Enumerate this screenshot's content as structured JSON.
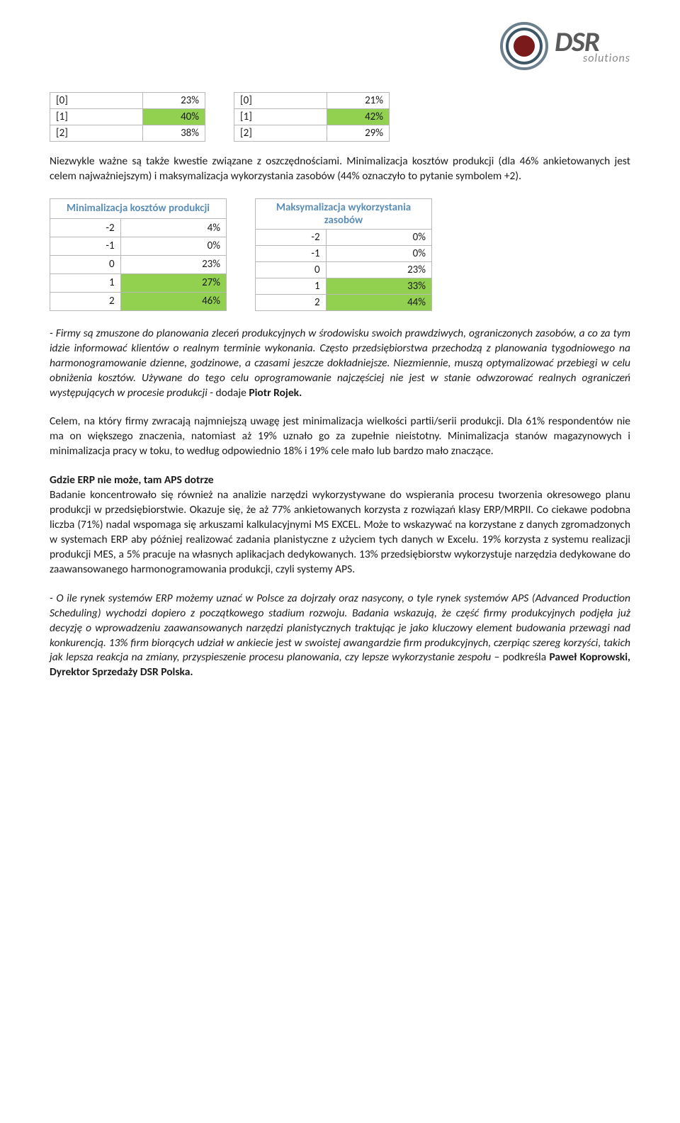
{
  "logo": {
    "brand": "DSR",
    "sub": "solutions",
    "outer_ring": "#6b7f8c",
    "inner_ring": "#3d5766",
    "dot": "#7a1a1a"
  },
  "mini_tables": {
    "left": {
      "rows": [
        {
          "label": "[0]",
          "value": "23%",
          "hl": false
        },
        {
          "label": "[1]",
          "value": "40%",
          "hl": true
        },
        {
          "label": "[2]",
          "value": "38%",
          "hl": false
        }
      ]
    },
    "right": {
      "rows": [
        {
          "label": "[0]",
          "value": "21%",
          "hl": false
        },
        {
          "label": "[1]",
          "value": "42%",
          "hl": true
        },
        {
          "label": "[2]",
          "value": "29%",
          "hl": false
        }
      ]
    }
  },
  "para1a": "Niezwykle ważne są także kwestie związane z oszczędnościami. Minimalizacja kosztów produkcji (dla 46% ankietowanych jest celem najważniejszym) i maksymalizacja wykorzystania zasobów (44% oznaczyło to pytanie symbolem +2).",
  "big_tables": {
    "left": {
      "header": "Minimalizacja kosztów produkcji",
      "rows": [
        {
          "k": "-2",
          "v": "4%",
          "hl": false
        },
        {
          "k": "-1",
          "v": "0%",
          "hl": false
        },
        {
          "k": "0",
          "v": "23%",
          "hl": false
        },
        {
          "k": "1",
          "v": "27%",
          "hl": true
        },
        {
          "k": "2",
          "v": "46%",
          "hl": true
        }
      ]
    },
    "right": {
      "header": "Maksymalizacja wykorzystania zasobów",
      "rows": [
        {
          "k": "-2",
          "v": "0%",
          "hl": false
        },
        {
          "k": "-1",
          "v": "0%",
          "hl": false
        },
        {
          "k": "0",
          "v": "23%",
          "hl": false
        },
        {
          "k": "1",
          "v": "33%",
          "hl": true
        },
        {
          "k": "2",
          "v": "44%",
          "hl": true
        }
      ]
    }
  },
  "quote1_italic": "- Firmy są zmuszone do planowania zleceń produkcyjnych w środowisku swoich prawdziwych, ograniczonych zasobów, a co za tym idzie informować klientów o realnym terminie wykonania. Często przedsiębiorstwa przechodzą z planowania tygodniowego na harmonogramowanie dzienne, godzinowe, a czasami jeszcze dokładniejsze. Niezmiennie, muszą optymalizować przebiegi w celu obniżenia kosztów. Używane do tego celu oprogramowanie najczęściej nie jest w stanie odwzorować realnych ograniczeń występujących w procesie produkcji ",
  "quote1_tail": "- dodaje ",
  "quote1_author": "Piotr Rojek.",
  "para2": "Celem, na który firmy zwracają najmniejszą uwagę jest minimalizacja wielkości partii/serii produkcji. Dla 61% respondentów nie ma on większego znaczenia, natomiast aż 19% uznało go za zupełnie nieistotny. Minimalizacja stanów magazynowych i minimalizacja pracy w toku, to według odpowiednio 18% i 19% cele mało lub bardzo mało znaczące.",
  "heading1": "Gdzie ERP nie może, tam APS dotrze",
  "para3": "Badanie koncentrowało się również na analizie narzędzi wykorzystywane do wspierania procesu tworzenia okresowego planu produkcji w przedsiębiorstwie. Okazuje się, że aż 77% ankietowanych korzysta z rozwiązań klasy ERP/MRPII. Co ciekawe podobna liczba (71%) nadal wspomaga się arkuszami kalkulacyjnymi MS EXCEL. Może to wskazywać na korzystane z danych zgromadzonych w systemach ERP aby później realizować zadania planistyczne z użyciem tych danych w Excelu. 19% korzysta z systemu realizacji produkcji MES, a 5% pracuje na własnych aplikacjach dedykowanych. 13% przedsiębiorstw wykorzystuje narzędzia dedykowane do zaawansowanego harmonogramowania produkcji, czyli systemy APS.",
  "quote2_italic": "- O ile rynek systemów ERP możemy uznać w Polsce za dojrzały oraz nasycony, o tyle rynek systemów APS (Advanced Production Scheduling) wychodzi dopiero z początkowego stadium rozwoju. Badania wskazują, że część firmy produkcyjnych podjęła już decyzję o wprowadzeniu zaawansowanych narzędzi planistycznych traktując je jako kluczowy element budowania przewagi nad konkurencją. 13% firm biorących udział w ankiecie jest w swoistej awangardzie firm produkcyjnych, czerpiąc szereg korzyści, takich jak lepsza reakcja na zmiany, przyspieszenie procesu planowania, czy lepsze wykorzystanie zespołu",
  "quote2_tail": " – podkreśla ",
  "quote2_author": "Paweł Koprowski, Dyrektor Sprzedaży DSR Polska.",
  "colors": {
    "highlight": "#92d050",
    "table_header_text": "#5a8eb8",
    "border": "#b8b8b8"
  }
}
